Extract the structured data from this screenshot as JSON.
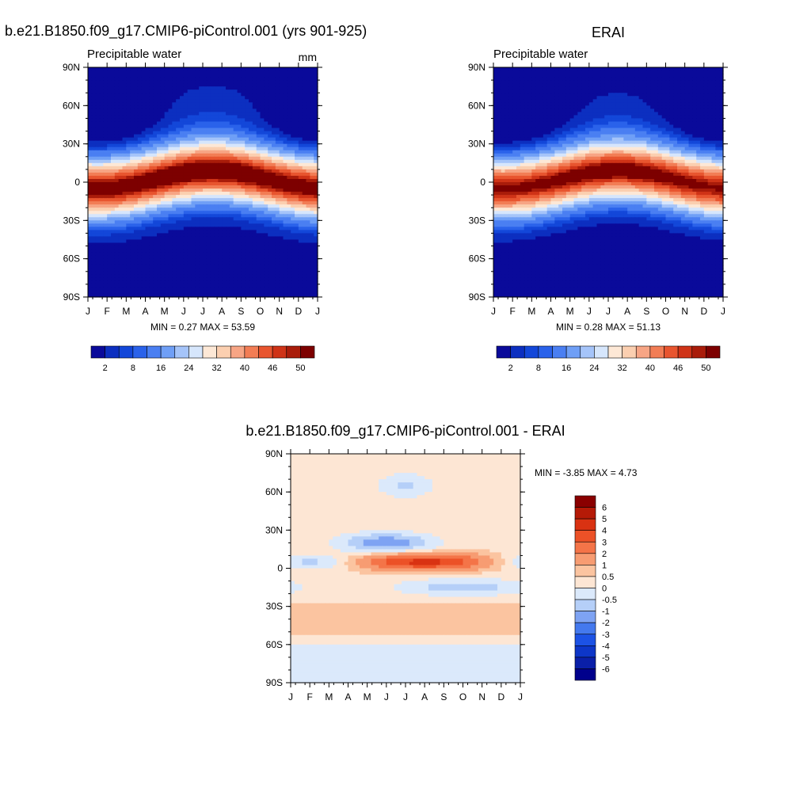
{
  "colors": {
    "precip_palette": [
      "#0a0a9a",
      "#0c2fc0",
      "#1347d9",
      "#2a62ea",
      "#4a7ff2",
      "#6f9ff6",
      "#a5c4f9",
      "#d6e6fc",
      "#fde8d6",
      "#fbcfb0",
      "#f7a585",
      "#f27d55",
      "#e8552f",
      "#cf3317",
      "#a91c0a",
      "#7d0000"
    ],
    "diff_palette": [
      "#00008c",
      "#0a1fa8",
      "#0d36c8",
      "#1c52e5",
      "#4479ee",
      "#7ea3f3",
      "#b5cff8",
      "#dbe9fb",
      "#fde6d4",
      "#fbc4a0",
      "#f79c72",
      "#f47448",
      "#ec5127",
      "#d93212",
      "#b51a07",
      "#8a0000"
    ]
  },
  "chart_data": [
    {
      "type": "heatmap",
      "id": "model",
      "title": "b.e21.B1850.f09_g17.CMIP6-piControl.001 (yrs 901-925)",
      "left_label": "Precipitable water",
      "units": "mm",
      "xlabel": "",
      "ylabel": "",
      "x_ticks": [
        "J",
        "F",
        "M",
        "A",
        "M",
        "J",
        "J",
        "A",
        "S",
        "O",
        "N",
        "D",
        "J"
      ],
      "y_ticks": [
        "90N",
        "60N",
        "30N",
        "0",
        "30S",
        "60S",
        "90S"
      ],
      "ylim": [
        -90,
        90
      ],
      "min_max_text": "MIN =   0.27 MAX =   53.59",
      "min": 0.27,
      "max": 53.59,
      "colorbar": {
        "orientation": "horizontal",
        "labels": [
          "2",
          "8",
          "16",
          "24",
          "32",
          "40",
          "46",
          "50"
        ]
      }
    },
    {
      "type": "heatmap",
      "id": "obs",
      "title": "ERAI",
      "left_label": "Precipitable water",
      "xlabel": "",
      "ylabel": "",
      "x_ticks": [
        "J",
        "F",
        "M",
        "A",
        "M",
        "J",
        "J",
        "A",
        "S",
        "O",
        "N",
        "D",
        "J"
      ],
      "y_ticks": [
        "90N",
        "60N",
        "30N",
        "0",
        "30S",
        "60S",
        "90S"
      ],
      "ylim": [
        -90,
        90
      ],
      "min_max_text": "MIN =   0.28 MAX =   51.13",
      "min": 0.28,
      "max": 51.13,
      "colorbar": {
        "orientation": "horizontal",
        "labels": [
          "2",
          "8",
          "16",
          "24",
          "32",
          "40",
          "46",
          "50"
        ]
      }
    },
    {
      "type": "heatmap",
      "id": "diff",
      "title": "b.e21.B1850.f09_g17.CMIP6-piControl.001 - ERAI",
      "xlabel": "",
      "ylabel": "",
      "x_ticks": [
        "J",
        "F",
        "M",
        "A",
        "M",
        "J",
        "J",
        "A",
        "S",
        "O",
        "N",
        "D",
        "J"
      ],
      "y_ticks": [
        "90N",
        "60N",
        "30N",
        "0",
        "30S",
        "60S",
        "90S"
      ],
      "ylim": [
        -90,
        90
      ],
      "min_max_text": "MIN =  -3.85 MAX =    4.73",
      "min": -3.85,
      "max": 4.73,
      "colorbar": {
        "orientation": "vertical",
        "labels": [
          "6",
          "5",
          "4",
          "3",
          "2",
          "1",
          "0.5",
          "0",
          "-0.5",
          "-1",
          "-2",
          "-3",
          "-4",
          "-5",
          "-6"
        ]
      }
    }
  ]
}
